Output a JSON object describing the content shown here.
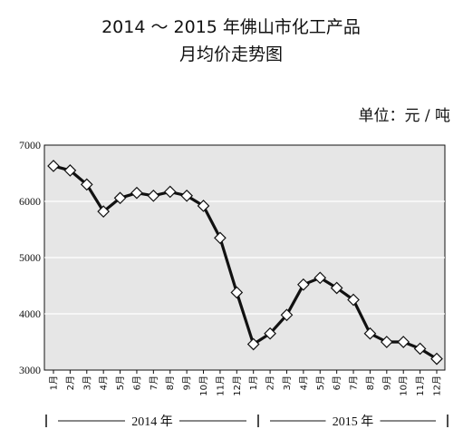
{
  "chart_data": {
    "type": "line",
    "title": "2014 ～ 2015 年佛山市化工产品",
    "subtitle": "月均价走势图",
    "unit_label": "单位：元 / 吨",
    "ylim": [
      3000,
      7000
    ],
    "y_ticks": [
      "7000",
      "6000",
      "5000",
      "4000",
      "3000"
    ],
    "grid": true,
    "x_tick_labels": [
      "1月",
      "2月",
      "3月",
      "4月",
      "5月",
      "6月",
      "7月",
      "8月",
      "9月",
      "10月",
      "11月",
      "12月",
      "1月",
      "2月",
      "3月",
      "4月",
      "5月",
      "6月",
      "7月",
      "8月",
      "9月",
      "10月",
      "11月",
      "12月"
    ],
    "year_groups": [
      {
        "label": "2014 年",
        "start_index": 0,
        "end_index": 11
      },
      {
        "label": "2015 年",
        "start_index": 12,
        "end_index": 23
      }
    ],
    "series": [
      {
        "values": [
          6630,
          6550,
          6300,
          5820,
          6060,
          6150,
          6100,
          6170,
          6100,
          5920,
          5350,
          4380,
          3460,
          3650,
          3980,
          4520,
          4640,
          4460,
          4250,
          3650,
          3500,
          3500,
          3380,
          3200
        ]
      }
    ],
    "colors": {
      "plot_background": "#e6e6e6",
      "gridline": "#ffffff",
      "line": "#111111",
      "marker_fill": "#ffffff"
    }
  }
}
